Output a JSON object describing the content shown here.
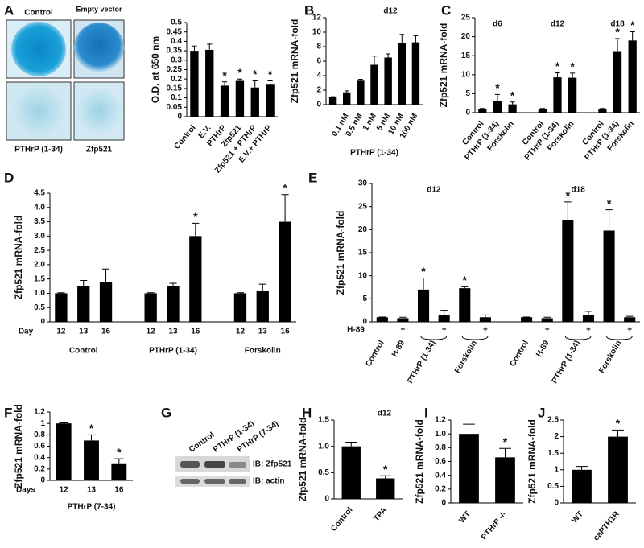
{
  "chart_data": [
    {
      "type": "bar",
      "panel": "A",
      "ylabel": "O.D. at 650 nm",
      "color": "#000000",
      "categories": [
        "Control",
        "E.V.",
        "PTHrP",
        "Zfp521",
        "Zfp521 + PTHrP",
        "E.V.+ PTHrP"
      ],
      "values": [
        0.35,
        0.355,
        0.165,
        0.19,
        0.155,
        0.17
      ],
      "errors": [
        0.025,
        0.03,
        0.02,
        0.01,
        0.035,
        0.02
      ],
      "annotations": [
        null,
        null,
        "*",
        "*",
        "*",
        "*"
      ],
      "ylim": [
        0,
        0.5
      ],
      "yticks": [
        0,
        0.05,
        0.1,
        0.15,
        0.2,
        0.25,
        0.3,
        0.35,
        0.4,
        0.45,
        0.5
      ]
    },
    {
      "type": "bar",
      "panel": "B",
      "title": "d12",
      "ylabel": "Zfp521 mRNA-fold",
      "xlabel": "PTHrP (1-34)",
      "color": "#000000",
      "categories": [
        null,
        "0.1 nM",
        "0.5 nM",
        "1 nM",
        "5 nM",
        "10 nM",
        "100 nM"
      ],
      "values": [
        1.0,
        1.7,
        3.3,
        5.5,
        6.5,
        8.5,
        8.6
      ],
      "errors": [
        0.1,
        0.2,
        0.2,
        1.2,
        0.5,
        1.2,
        0.9
      ],
      "ylim": [
        0,
        12
      ],
      "yticks": [
        0,
        2,
        4,
        6,
        8,
        10,
        12
      ]
    },
    {
      "type": "bar",
      "panel": "C",
      "ylabel": "Zfp521 mRNA-fold",
      "color": "#000000",
      "group_labels": [
        "d6",
        "d12",
        "d18"
      ],
      "categories": [
        "Control",
        "PTHrP (1-34)",
        "Forskolin",
        "Control",
        "PTHrP (1-34)",
        "Forskolin",
        "Control",
        "PTHrP (1-34)",
        "Forskolin"
      ],
      "values": [
        1,
        3,
        2.2,
        1,
        9.3,
        9.2,
        1,
        16.2,
        19
      ],
      "errors": [
        0.1,
        1.8,
        0.6,
        0.1,
        1.2,
        1.2,
        0.1,
        3.3,
        2.3
      ],
      "annotations": [
        null,
        "*",
        "*",
        null,
        "*",
        "*",
        null,
        "*",
        "*"
      ],
      "ylim": [
        0,
        25
      ],
      "yticks": [
        0,
        5,
        10,
        15,
        20,
        25
      ]
    },
    {
      "type": "bar",
      "panel": "D",
      "ylabel": "Zfp521 mRNA-fold",
      "x_row_label": "Day",
      "color": "#000000",
      "group_labels": [
        "Control",
        "PTHrP (1-34)",
        "Forskolin"
      ],
      "categories": [
        "12",
        "13",
        "16",
        "12",
        "13",
        "16",
        "12",
        "13",
        "16"
      ],
      "values": [
        1,
        1.25,
        1.4,
        1,
        1.25,
        3,
        1,
        1.07,
        3.5
      ],
      "errors": [
        0.02,
        0.2,
        0.45,
        0.02,
        0.1,
        0.45,
        0.02,
        0.25,
        0.95
      ],
      "annotations": [
        null,
        null,
        null,
        null,
        null,
        "*",
        null,
        null,
        "*"
      ],
      "ylim": [
        0,
        4.5
      ],
      "yticks": [
        0,
        0.5,
        {
          "value": 1,
          "label": "1.0"
        },
        1.5,
        {
          "value": 2,
          "label": "2.0"
        },
        2.5,
        {
          "value": 3,
          "label": "3.0"
        },
        3.5,
        {
          "value": 4,
          "label": "4.0"
        },
        4.5
      ]
    },
    {
      "type": "bar",
      "panel": "E",
      "ylabel": "Zfp521 mRNA-fold",
      "color": "#000000",
      "group_labels": [
        "d12",
        "d18"
      ],
      "x_marks_label": "H-89",
      "x_marks": [
        null,
        "+",
        null,
        "+",
        null,
        "+",
        null,
        "+",
        null,
        "+",
        null,
        "+"
      ],
      "categories": [
        "Control",
        "H-89",
        "PTHrP (1-34)",
        null,
        "Forskolin",
        null,
        "Control",
        "H-89",
        "PTHrP (1-34)",
        null,
        "Forskolin",
        null
      ],
      "values": [
        1,
        0.8,
        7,
        1.5,
        7.3,
        1.0,
        1,
        0.8,
        22,
        1.5,
        19.8,
        1.0
      ],
      "errors": [
        0.05,
        0.2,
        2.5,
        1,
        0.3,
        0.5,
        0.05,
        0.2,
        4,
        0.8,
        4.5,
        0.2
      ],
      "annotations": [
        null,
        null,
        "*",
        null,
        "*",
        null,
        null,
        null,
        "*",
        null,
        "*",
        null
      ],
      "ylim": [
        0,
        30
      ],
      "yticks": [
        0,
        5,
        10,
        15,
        20,
        25,
        30
      ]
    },
    {
      "type": "bar",
      "panel": "F",
      "ylabel": "Zfp521 mRNA-fold",
      "xlabel": "PTHrP (7-34)",
      "x_row_label": "Days",
      "color": "#000000",
      "categories": [
        "12",
        "13",
        "16"
      ],
      "values": [
        1.0,
        0.7,
        0.3
      ],
      "errors": [
        0.01,
        0.1,
        0.08
      ],
      "annotations": [
        null,
        "*",
        "*"
      ],
      "ylim": [
        0,
        1.2
      ],
      "yticks": [
        0,
        0.2,
        0.4,
        0.6,
        0.8,
        1,
        1.2
      ]
    },
    {
      "type": "bar",
      "panel": "H",
      "title": "d12",
      "ylabel": "Zfp521 mRNA-fold",
      "color": "#000000",
      "categories": [
        "Control",
        "TPA"
      ],
      "values": [
        1.0,
        0.39
      ],
      "errors": [
        0.08,
        0.05
      ],
      "annotations": [
        null,
        "*"
      ],
      "ylim": [
        0,
        1.5
      ],
      "yticks": [
        0,
        0.5,
        {
          "value": 1,
          "label": "1.0"
        },
        1.5
      ]
    },
    {
      "type": "bar",
      "panel": "I",
      "ylabel": "Zfp521 mRNA-fold",
      "color": "#000000",
      "categories": [
        "WT",
        "PTHrP -/-"
      ],
      "values": [
        1.0,
        0.66
      ],
      "errors": [
        0.14,
        0.13
      ],
      "annotations": [
        null,
        "*"
      ],
      "ylim": [
        0,
        1.2
      ],
      "yticks": [
        0,
        0.2,
        0.4,
        0.6,
        0.8,
        {
          "value": 1,
          "label": "1.0"
        },
        1.2
      ]
    },
    {
      "type": "bar",
      "panel": "J",
      "ylabel": "Zfp521 mRNA-fold",
      "color": "#000000",
      "categories": [
        "WT",
        "caPTH1R"
      ],
      "values": [
        1.0,
        2.0
      ],
      "errors": [
        0.1,
        0.2
      ],
      "annotations": [
        null,
        "*"
      ],
      "ylim": [
        0,
        2.5
      ],
      "yticks": [
        0,
        0.5,
        1,
        1.5,
        2,
        2.5
      ]
    }
  ],
  "stain_images": {
    "labels": [
      "Control",
      "Empty vector",
      "PTHrP (1-34)",
      "Zfp521"
    ]
  },
  "blot": {
    "panel": "G",
    "columns": [
      "Control",
      "PTHrP (1-34)",
      "PTHrP (7-34)"
    ],
    "rows": [
      "IB: Zfp521",
      "IB: actin"
    ]
  }
}
